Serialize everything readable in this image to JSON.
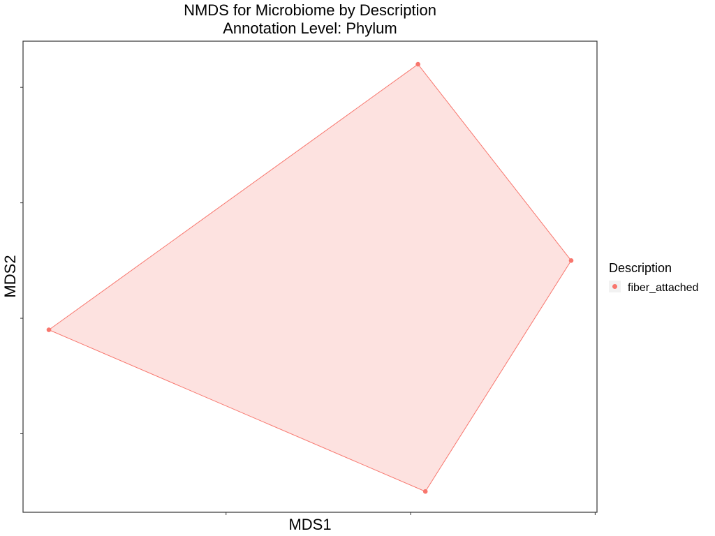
{
  "chart_data": {
    "type": "scatter",
    "title": "NMDS for Microbiome by Description",
    "subtitle": "Annotation Level: Phylum",
    "xlabel": "MDS1",
    "ylabel": "MDS2",
    "x_tick_labels_shown": false,
    "y_tick_labels_shown": false,
    "grid": false,
    "legend": {
      "title": "Description",
      "position": "right",
      "entries": [
        "fiber_attached"
      ]
    },
    "colors": {
      "fiber_attached": "#F8766D",
      "hull_fill": "#FDE2E0"
    },
    "series": [
      {
        "name": "fiber_attached",
        "hull": true,
        "points": [
          {
            "x": -0.146,
            "y": -0.005
          },
          {
            "x": 0.054,
            "y": 0.11
          },
          {
            "x": 0.137,
            "y": 0.025
          },
          {
            "x": 0.058,
            "y": -0.075
          }
        ]
      }
    ],
    "xlim": [
      -0.16,
      0.151
    ],
    "ylim": [
      -0.084,
      0.12
    ],
    "x_ticks": [
      -0.05,
      0.05,
      0.15
    ],
    "y_ticks": [
      -0.05,
      0.0,
      0.05,
      0.1
    ]
  }
}
